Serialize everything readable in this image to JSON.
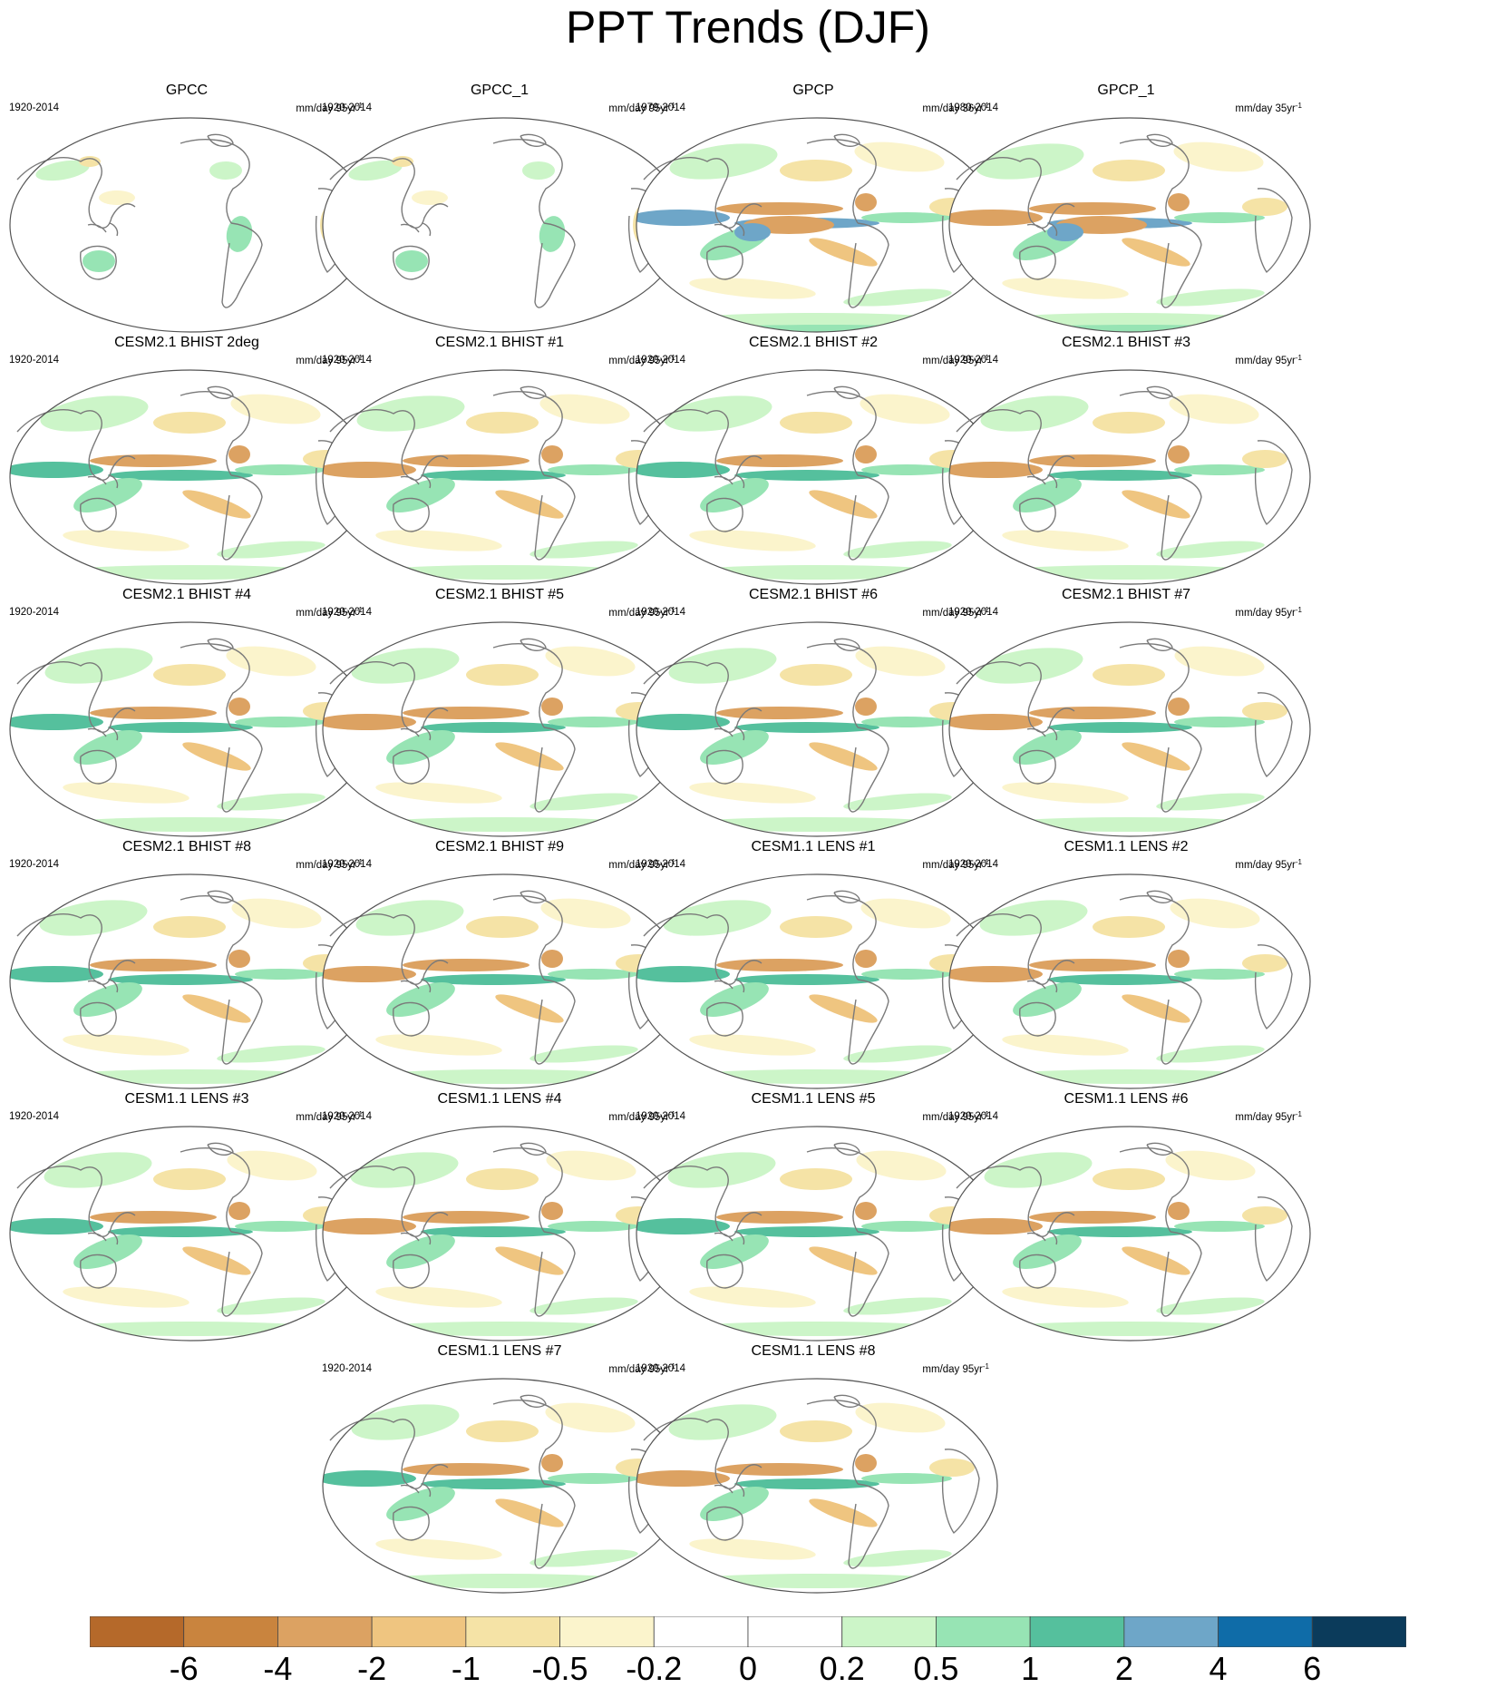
{
  "title": "PPT Trends (DJF)",
  "colors": {
    "levels": [
      "#b5692a",
      "#c9843e",
      "#dca262",
      "#efc580",
      "#f5e3a6",
      "#fbf4cc",
      "#ffffff",
      "#ffffff",
      "#ccf5c8",
      "#97e4b4",
      "#55c09d",
      "#6ea6c8",
      "#0f6ca8",
      "#0b3b5b"
    ],
    "outline": "#7a7a7a"
  },
  "colorbar": {
    "labels": [
      "-6",
      "-4",
      "-2",
      "-1",
      "-0.5",
      "-0.2",
      "0",
      "0.2",
      "0.5",
      "1",
      "2",
      "4",
      "6"
    ]
  },
  "panels": [
    {
      "title": "GPCC",
      "period": "1920-2014",
      "units": "mm/day 95yr",
      "exp": "-1",
      "kind": "land"
    },
    {
      "title": "GPCC_1",
      "period": "1920-2014",
      "units": "mm/day 95yr",
      "exp": "-1",
      "kind": "land"
    },
    {
      "title": "GPCP",
      "period": "1979-2014",
      "units": "mm/day 36yr",
      "exp": "-1",
      "kind": "obs"
    },
    {
      "title": "GPCP_1",
      "period": "1980-2014",
      "units": "mm/day 35yr",
      "exp": "-1",
      "kind": "obs"
    },
    {
      "title": "CESM2.1 BHIST 2deg",
      "period": "1920-2014",
      "units": "mm/day 95yr",
      "exp": "-1",
      "kind": "model"
    },
    {
      "title": "CESM2.1 BHIST #1",
      "period": "1920-2014",
      "units": "mm/day 95yr",
      "exp": "-1",
      "kind": "model"
    },
    {
      "title": "CESM2.1 BHIST #2",
      "period": "1920-2014",
      "units": "mm/day 95yr",
      "exp": "-1",
      "kind": "model"
    },
    {
      "title": "CESM2.1 BHIST #3",
      "period": "1920-2014",
      "units": "mm/day 95yr",
      "exp": "-1",
      "kind": "model"
    },
    {
      "title": "CESM2.1 BHIST #4",
      "period": "1920-2014",
      "units": "mm/day 95yr",
      "exp": "-1",
      "kind": "model"
    },
    {
      "title": "CESM2.1 BHIST #5",
      "period": "1920-2014",
      "units": "mm/day 95yr",
      "exp": "-1",
      "kind": "model"
    },
    {
      "title": "CESM2.1 BHIST #6",
      "period": "1920-2014",
      "units": "mm/day 95yr",
      "exp": "-1",
      "kind": "model"
    },
    {
      "title": "CESM2.1 BHIST #7",
      "period": "1920-2014",
      "units": "mm/day 95yr",
      "exp": "-1",
      "kind": "model"
    },
    {
      "title": "CESM2.1 BHIST #8",
      "period": "1920-2014",
      "units": "mm/day 95yr",
      "exp": "-1",
      "kind": "model"
    },
    {
      "title": "CESM2.1 BHIST #9",
      "period": "1920-2014",
      "units": "mm/day 95yr",
      "exp": "-1",
      "kind": "model"
    },
    {
      "title": "CESM1.1 LENS #1",
      "period": "1920-2014",
      "units": "mm/day 95yr",
      "exp": "-1",
      "kind": "model"
    },
    {
      "title": "CESM1.1 LENS #2",
      "period": "1920-2014",
      "units": "mm/day 95yr",
      "exp": "-1",
      "kind": "model"
    },
    {
      "title": "CESM1.1 LENS #3",
      "period": "1920-2014",
      "units": "mm/day 95yr",
      "exp": "-1",
      "kind": "model"
    },
    {
      "title": "CESM1.1 LENS #4",
      "period": "1920-2014",
      "units": "mm/day 95yr",
      "exp": "-1",
      "kind": "model"
    },
    {
      "title": "CESM1.1 LENS #5",
      "period": "1920-2014",
      "units": "mm/day 95yr",
      "exp": "-1",
      "kind": "model"
    },
    {
      "title": "CESM1.1 LENS #6",
      "period": "1920-2014",
      "units": "mm/day 95yr",
      "exp": "-1",
      "kind": "model"
    },
    {
      "title": "CESM1.1 LENS #7",
      "period": "1920-2014",
      "units": "mm/day 95yr",
      "exp": "-1",
      "kind": "model"
    },
    {
      "title": "CESM1.1 LENS #8",
      "period": "1920-2014",
      "units": "mm/day 95yr",
      "exp": "-1",
      "kind": "model"
    }
  ]
}
